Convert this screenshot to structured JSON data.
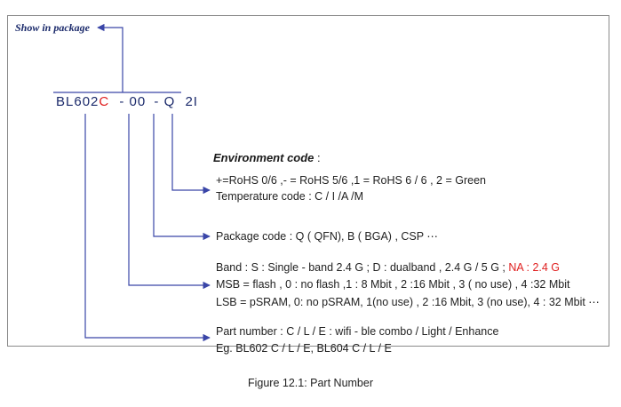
{
  "label": {
    "show_in_package": "Show in package"
  },
  "part_code": {
    "prefix": "BL602",
    "variant": "C",
    "seg2": "- 00",
    "seg3": "- Q",
    "seg4": "2I"
  },
  "environment": {
    "title": "Environment code",
    "title_colon": ":",
    "line1": "+=RoHS 0/6 ,- = RoHS 5/6 ,1 = RoHS 6 / 6 , 2 = Green",
    "line2": "Temperature code : C / I /A /M"
  },
  "package": {
    "line1": "Package code : Q ( QFN),  B ( BGA) , CSP ⋯"
  },
  "memory": {
    "line1_prefix": "Band : S : Single - band 2.4 G ; D : dualband , 2.4 G / 5 G ; ",
    "line1_red": "NA : 2.4 G",
    "line2": "MSB = flash , 0 : no flash ,1 : 8 Mbit , 2 :16 Mbit , 3 ( no use) , 4 :32 Mbit",
    "line3": "LSB = pSRAM, 0: no pSRAM, 1(no use) , 2 :16 Mbit, 3 (no use), 4 : 32 Mbit ⋯"
  },
  "partnum": {
    "line1": "Part number :  C  /  L  / E : wifi - ble combo / Light / Enhance",
    "line2": "Eg. BL602 C / L / E,  BL604 C / L / E"
  },
  "caption": "Figure 12.1: Part Number",
  "colors": {
    "connector": "#3a46a8",
    "accent_red": "#e02020"
  }
}
